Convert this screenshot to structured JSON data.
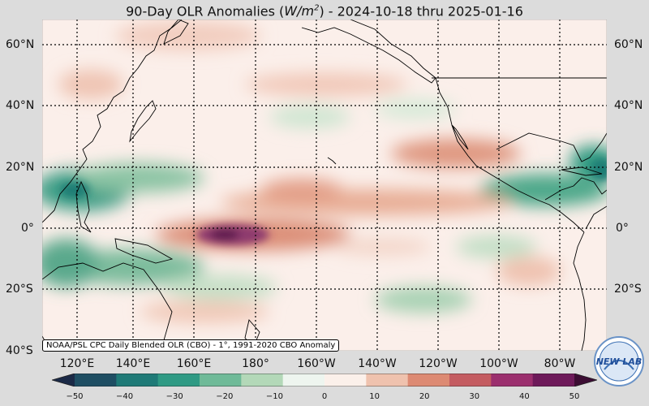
{
  "title": {
    "prefix": "90-Day OLR Anomalies (",
    "unit_base": "W/m",
    "unit_exp": "2",
    "suffix": ") - 2024-10-18 thru 2025-01-16"
  },
  "credit": "NOAA/PSL CPC Daily Blended OLR (CBO) - 1°, 1991-2020 CBO Anomaly",
  "lat_labels": [
    "60°N",
    "40°N",
    "20°N",
    "0°",
    "20°S",
    "40°S"
  ],
  "lon_labels": [
    "120°E",
    "140°E",
    "160°E",
    "180°",
    "160°W",
    "140°W",
    "120°W",
    "100°W",
    "80°W"
  ],
  "colorbar": {
    "ticks": [
      "−50",
      "−40",
      "−30",
      "−20",
      "−10",
      "0",
      "10",
      "20",
      "30",
      "40",
      "50"
    ],
    "colors": [
      "#1b2a47",
      "#1f4e63",
      "#1f7a77",
      "#2f9a84",
      "#6fba98",
      "#b3d8b8",
      "#eef5ef",
      "#fbf0ea",
      "#efc2ae",
      "#dd8a73",
      "#c45c61",
      "#9b2f6e",
      "#6e1a5a",
      "#3c0d33"
    ]
  },
  "logo": {
    "text": "NEW LAB"
  }
}
